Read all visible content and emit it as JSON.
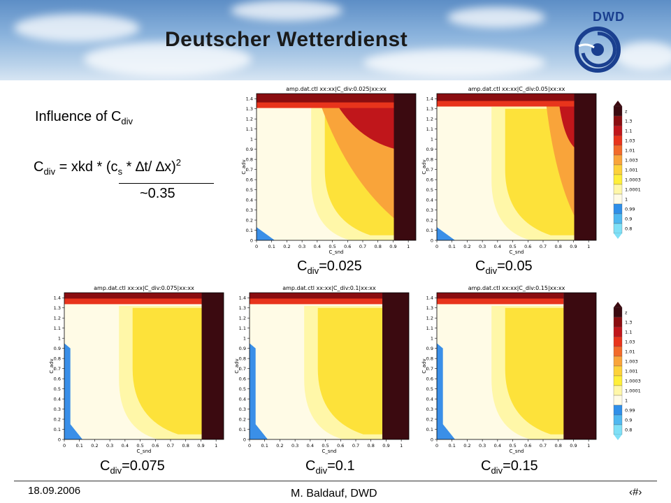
{
  "header": {
    "title": "Deutscher Wetterdienst",
    "logo_text": "DWD"
  },
  "left_text": {
    "heading_prefix": "Influence of C",
    "heading_sub": "div",
    "formula_c": "C",
    "formula_c_sub": "div",
    "formula_mid": " = xkd * (c",
    "formula_cs_sub": "s",
    "formula_rest": " * ∆t/ ∆x)",
    "formula_exp": "2",
    "approx": "~0.35"
  },
  "plot_labels": {
    "xlabel": "C_snd",
    "ylabel": "C_adv",
    "yticks": [
      "1.4",
      "1.3",
      "1.2",
      "1.1",
      "1",
      "0.9",
      "0.8",
      "0.7",
      "0.6",
      "0.5",
      "0.4",
      "0.3",
      "0.2",
      "0.1",
      "0"
    ],
    "xticks": [
      "0",
      "0.1",
      "0.2",
      "0.3",
      "0.4",
      "0.5",
      "0.6",
      "0.7",
      "0.8",
      "0.9",
      "1"
    ]
  },
  "plots": [
    {
      "title": "amp.dat.ctl    xx:xx|C_div:0.025|xx:xx",
      "caption_c": "C",
      "caption_sub": "div",
      "caption_value": "=0.025"
    },
    {
      "title": "amp.dat.ctl    xx:xx|C_div:0.05|xx:xx",
      "caption_c": "C",
      "caption_sub": "div",
      "caption_value": "=0.05"
    },
    {
      "title": "amp.dat.ctl    xx:xx|C_div:0.075|xx:xx",
      "caption_c": "C",
      "caption_sub": "div",
      "caption_value": "=0.075"
    },
    {
      "title": "amp.dat.ctl    xx:xx|C_div:0.1|xx:xx",
      "caption_c": "C",
      "caption_sub": "div",
      "caption_value": "=0.1"
    },
    {
      "title": "amp.dat.ctl    xx:xx|C_div:0.15|xx:xx",
      "caption_c": "C",
      "caption_sub": "div",
      "caption_value": "=0.15"
    }
  ],
  "colorbar": {
    "labels": [
      "z",
      "1.3",
      "1.1",
      "1.03",
      "1.01",
      "1.003",
      "1.001",
      "1.0003",
      "1.0001",
      "1",
      "0.99",
      "0.9",
      "0.8"
    ],
    "colors": [
      "#3b0a10",
      "#8a0d10",
      "#c0161b",
      "#e8341c",
      "#f26a2a",
      "#f9a43a",
      "#fdd23a",
      "#ffef3a",
      "#fff7a8",
      "#fffbe6",
      "#2f8fe8",
      "#4fb8f0",
      "#7fe0f7"
    ]
  },
  "footer": {
    "date": "18.09.2006",
    "author": "M. Baldauf,  DWD",
    "page": "‹#›"
  }
}
